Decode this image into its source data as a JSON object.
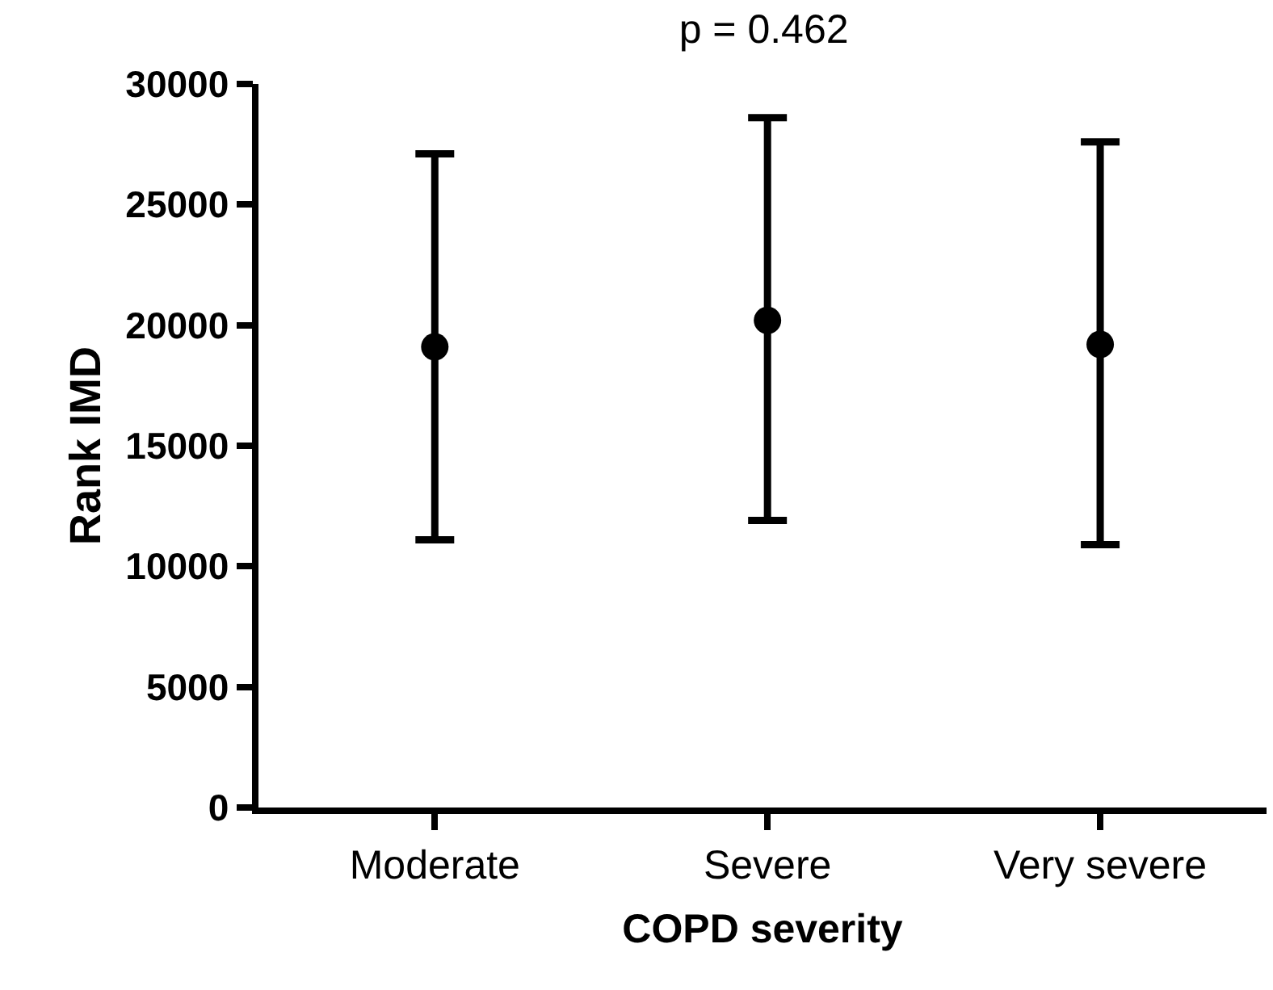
{
  "chart_data": {
    "type": "scatter",
    "title": "p = 0.462",
    "xlabel": "COPD severity",
    "ylabel": "Rank IMD",
    "categories": [
      "Moderate",
      "Severe",
      "Very severe"
    ],
    "values": [
      19100,
      20200,
      19200
    ],
    "errors": [
      [
        11100,
        27100
      ],
      [
        11900,
        28600
      ],
      [
        10900,
        27600
      ]
    ],
    "color": "#000000",
    "marker": "circle",
    "ylim": [
      0,
      30000
    ],
    "yticks": [
      0,
      5000,
      10000,
      15000,
      20000,
      25000,
      30000
    ],
    "grid": false
  }
}
